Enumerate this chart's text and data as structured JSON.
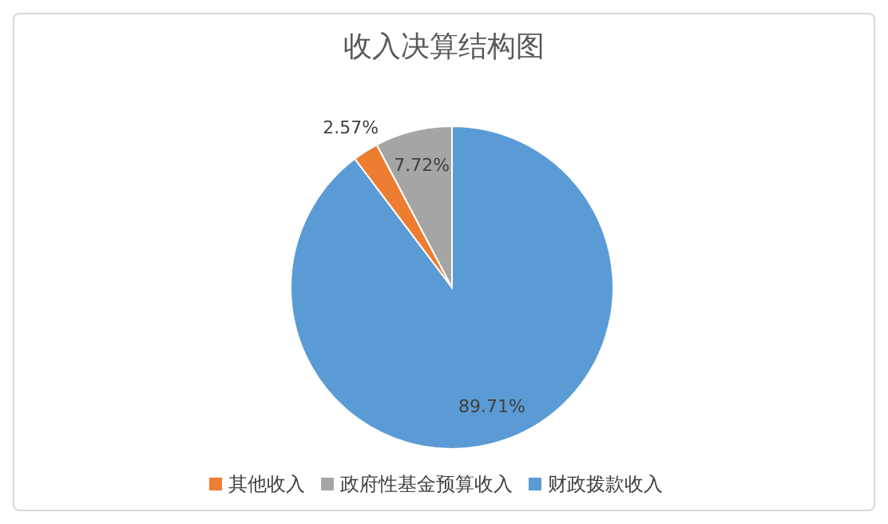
{
  "chart_data": {
    "type": "pie",
    "title": "收入决算结构图",
    "categories": [
      "财政拨款收入",
      "其他收入",
      "政府性基金预算收入"
    ],
    "values": [
      89.71,
      2.57,
      7.72
    ],
    "value_labels": [
      "89.71%",
      "2.57%",
      "7.72%"
    ],
    "colors": [
      "#5b9bd5",
      "#ed7d31",
      "#a5a5a5"
    ],
    "legend": "bottom"
  }
}
